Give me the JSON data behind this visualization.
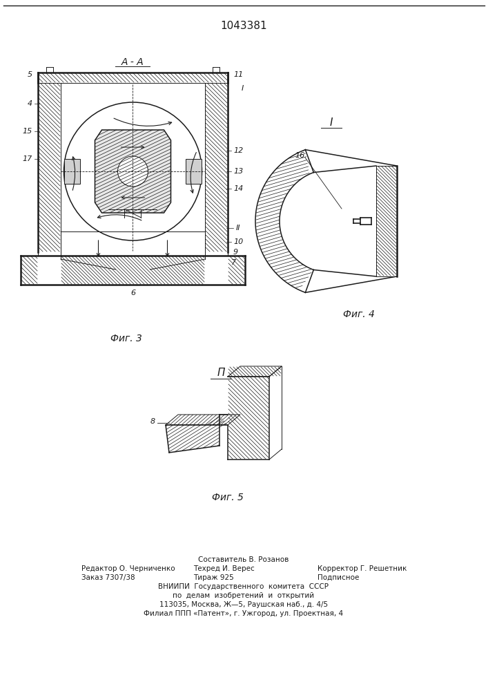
{
  "patent_number": "1043381",
  "background_color": "#ffffff",
  "line_color": "#1a1a1a",
  "fig3_label": "Фиг. 3",
  "fig4_label": "Фиг. 4",
  "fig5_label": "Фиг. 5",
  "section_aa": "А - А",
  "section_I": "I",
  "section_II": "И",
  "footer_line1": "Составитель В. Розанов",
  "footer_line2_left": "Редактор О. Черниченко",
  "footer_line2_mid": "Техред И. Верес",
  "footer_line2_right": "Корректор Г. Решетник",
  "footer_line3_left": "Заказ 7307/38",
  "footer_line3_mid": "Тираж 925",
  "footer_line3_right": "Подписное",
  "footer_line4": "ВНИИПИ  Государственного  комитета  СССР",
  "footer_line5": "по  делам  изобретений  и  открытий",
  "footer_line6": "113035, Москва, Ж—5, Раушская наб., д. 4/5",
  "footer_line7": "Филиал ППП «Патент», г. Ужгород, ул. Проектная, 4"
}
